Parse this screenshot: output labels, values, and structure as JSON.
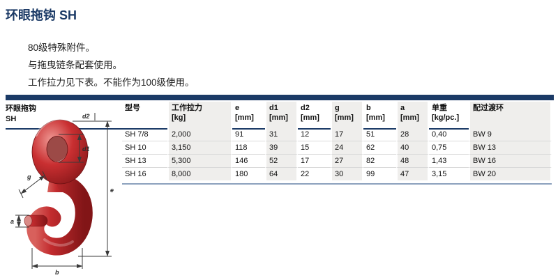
{
  "page": {
    "title": "环眼拖钩 SH",
    "description_lines": [
      "80级特殊附件。",
      "与拖曳链条配套使用。",
      "工作拉力见下表。不能作为100级使用。"
    ]
  },
  "product": {
    "label_line1": "环眼拖钩",
    "label_line2": "SH",
    "dimension_labels": {
      "d1": "d1",
      "d2": "d2",
      "e": "e",
      "g": "g",
      "a": "a",
      "b": "b"
    }
  },
  "table": {
    "columns": [
      {
        "key": "model",
        "label": "型号",
        "unit": ""
      },
      {
        "key": "load",
        "label": "工作拉力",
        "unit": "[kg]"
      },
      {
        "key": "e",
        "label": "e",
        "unit": "[mm]"
      },
      {
        "key": "d1",
        "label": "d1",
        "unit": "[mm]"
      },
      {
        "key": "d2",
        "label": "d2",
        "unit": "[mm]"
      },
      {
        "key": "g",
        "label": "g",
        "unit": "[mm]"
      },
      {
        "key": "b",
        "label": "b",
        "unit": "[mm]"
      },
      {
        "key": "a",
        "label": "a",
        "unit": "[mm]"
      },
      {
        "key": "weight",
        "label": "单重",
        "unit": "[kg/pc.]"
      },
      {
        "key": "ring",
        "label": "配过渡环",
        "unit": ""
      }
    ],
    "rows": [
      [
        "SH 7/8",
        "2,000",
        "91",
        "31",
        "12",
        "17",
        "51",
        "28",
        "0,40",
        "BW 9"
      ],
      [
        "SH 10",
        "3,150",
        "118",
        "39",
        "15",
        "24",
        "62",
        "40",
        "0,75",
        "BW 13"
      ],
      [
        "SH 13",
        "5,300",
        "146",
        "52",
        "17",
        "27",
        "82",
        "48",
        "1,43",
        "BW 16"
      ],
      [
        "SH 16",
        "8,000",
        "180",
        "64",
        "22",
        "30",
        "99",
        "47",
        "3,15",
        "BW 20"
      ]
    ]
  },
  "colors": {
    "navy": "#1b3a66",
    "band_gray": "#efeeec",
    "row_line": "#d9d9d9",
    "bottom_line": "#8ca1bd",
    "hook_red": "#c1272d"
  }
}
